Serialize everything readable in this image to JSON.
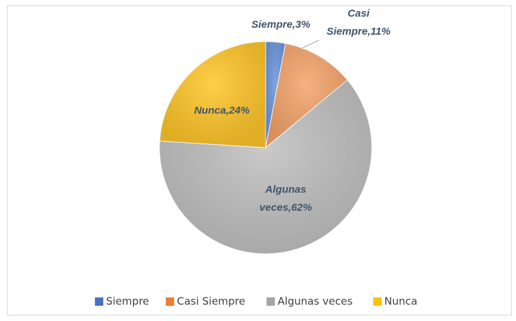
{
  "chart_data": {
    "type": "pie",
    "categories": [
      "Siempre",
      "Casi Siempre",
      "Algunas veces",
      "Nunca"
    ],
    "values": [
      3,
      11,
      62,
      24
    ],
    "value_labels": [
      "Siempre,3%",
      "Casi Siempre,11%",
      "Algunas veces,62%",
      "Nunca,24%"
    ],
    "colors": [
      "#4472c4",
      "#ed7d31",
      "#a5a5a5",
      "#ffc000"
    ],
    "slice_colors": [
      "#6a95db",
      "#f4a46c",
      "#c0c0c0",
      "#ffc62a"
    ],
    "legend": "bottom"
  }
}
